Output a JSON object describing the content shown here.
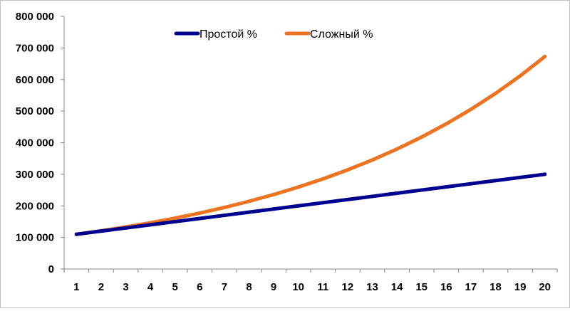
{
  "chart_data": {
    "type": "line",
    "title": "",
    "xlabel": "",
    "ylabel": "",
    "categories": [
      "1",
      "2",
      "3",
      "4",
      "5",
      "6",
      "7",
      "8",
      "9",
      "10",
      "11",
      "12",
      "13",
      "14",
      "15",
      "16",
      "17",
      "18",
      "19",
      "20"
    ],
    "ylim": [
      0,
      800000
    ],
    "y_ticks": [
      0,
      100000,
      200000,
      300000,
      400000,
      500000,
      600000,
      700000,
      800000
    ],
    "y_tick_labels": [
      "0",
      "100 000",
      "200 000",
      "300 000",
      "400 000",
      "500 000",
      "600 000",
      "700 000",
      "800 000"
    ],
    "grid": false,
    "legend_position": "top-center",
    "series": [
      {
        "name": "Простой %",
        "color": "#000090",
        "values": [
          110000,
          120000,
          130000,
          140000,
          150000,
          160000,
          170000,
          180000,
          190000,
          200000,
          210000,
          220000,
          230000,
          240000,
          250000,
          260000,
          270000,
          280000,
          290000,
          300000
        ]
      },
      {
        "name": "Сложный %",
        "color": "#ed7320",
        "values": [
          110000,
          121000,
          133100,
          146410,
          161051,
          177156,
          194872,
          214359,
          235795,
          259374,
          285312,
          313843,
          345227,
          379750,
          417725,
          459497,
          505447,
          555992,
          611591,
          672750
        ]
      }
    ]
  }
}
